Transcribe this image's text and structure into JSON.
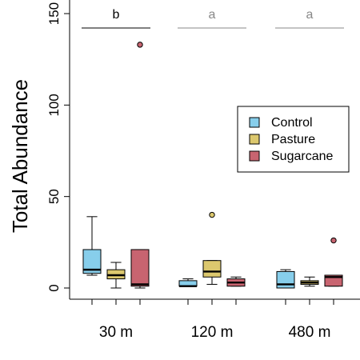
{
  "chart_data": {
    "type": "box",
    "ylabel": "Total Abundance",
    "ylim": [
      -5,
      152
    ],
    "yticks": [
      0,
      50,
      100,
      150
    ],
    "groups": [
      "30 m",
      "120 m",
      "480 m"
    ],
    "series": [
      {
        "name": "Control",
        "color": "#87ceeb"
      },
      {
        "name": "Pasture",
        "color": "#dcc86e"
      },
      {
        "name": "Sugarcane",
        "color": "#c86470"
      }
    ],
    "legend": {
      "position": "right"
    },
    "significance": [
      {
        "group": "30 m",
        "letter": "b",
        "color": "#000000"
      },
      {
        "group": "120 m",
        "letter": "a",
        "color": "#888888"
      },
      {
        "group": "480 m",
        "letter": "a",
        "color": "#888888"
      }
    ],
    "boxes": [
      {
        "group": "30 m",
        "series": "Control",
        "min": 7,
        "q1": 8,
        "median": 10,
        "q3": 21,
        "max": 39,
        "outliers": []
      },
      {
        "group": "30 m",
        "series": "Pasture",
        "min": 0,
        "q1": 5,
        "median": 7,
        "q3": 10,
        "max": 14,
        "outliers": []
      },
      {
        "group": "30 m",
        "series": "Sugarcane",
        "min": 0,
        "q1": 1,
        "median": 2,
        "q3": 21,
        "max": 21,
        "outliers": [
          133
        ]
      },
      {
        "group": "120 m",
        "series": "Control",
        "min": 1,
        "q1": 1,
        "median": 1,
        "q3": 4,
        "max": 5,
        "outliers": []
      },
      {
        "group": "120 m",
        "series": "Pasture",
        "min": 2,
        "q1": 6,
        "median": 9,
        "q3": 15,
        "max": 15,
        "outliers": [
          40
        ]
      },
      {
        "group": "120 m",
        "series": "Sugarcane",
        "min": 1,
        "q1": 1,
        "median": 3,
        "q3": 5,
        "max": 6,
        "outliers": []
      },
      {
        "group": "480 m",
        "series": "Control",
        "min": 0,
        "q1": 0,
        "median": 2,
        "q3": 9,
        "max": 10,
        "outliers": []
      },
      {
        "group": "480 m",
        "series": "Pasture",
        "min": 1,
        "q1": 2,
        "median": 3,
        "q3": 4,
        "max": 6,
        "outliers": []
      },
      {
        "group": "480 m",
        "series": "Sugarcane",
        "min": 1,
        "q1": 1,
        "median": 6,
        "q3": 7,
        "max": 7,
        "outliers": [
          26
        ]
      }
    ]
  }
}
